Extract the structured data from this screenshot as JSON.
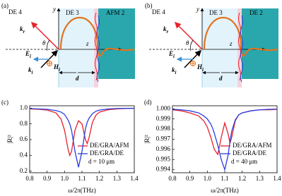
{
  "diagrams": [
    {
      "panel_label": "(a)",
      "outer_left": "DE 4",
      "middle": "DE 3",
      "right": "AFM 2",
      "y_axis": "y",
      "z_axis": "z",
      "theta": "θ",
      "kr": {
        "main": "k",
        "sub": "r"
      },
      "ki": {
        "main": "k",
        "sub": "i"
      },
      "Ei": {
        "main": "E",
        "sub": "i"
      },
      "Hi": {
        "main": "H",
        "sub": "i"
      },
      "d": "d"
    },
    {
      "panel_label": "(b)",
      "outer_left": "DE 4",
      "middle": "DE 3",
      "right": "DE 2",
      "y_axis": "y",
      "z_axis": "z",
      "theta": "θ",
      "kr": {
        "main": "k",
        "sub": "r"
      },
      "ki": {
        "main": "k",
        "sub": "i"
      },
      "Ei": {
        "main": "E",
        "sub": "i"
      },
      "Hi": {
        "main": "H",
        "sub": "i"
      },
      "d": "d"
    }
  ],
  "chart_data": [
    {
      "type": "line",
      "panel_label": "(c)",
      "xlabel": "ω/2π(THz)",
      "ylabel": "|R|²",
      "annotation": "d = 10 μm",
      "x": [
        0.8,
        0.85,
        0.9,
        0.95,
        0.98,
        1.0,
        1.02,
        1.03,
        1.04,
        1.06,
        1.08,
        1.1,
        1.12,
        1.13,
        1.14,
        1.16,
        1.18,
        1.2,
        1.25,
        1.3,
        1.35,
        1.4
      ],
      "series": [
        {
          "name": "DE/GRA/AFM",
          "color": "#e8202a",
          "values": [
            0.99,
            0.985,
            0.975,
            0.94,
            0.86,
            0.72,
            0.48,
            0.4,
            0.45,
            0.72,
            0.84,
            0.8,
            0.6,
            0.55,
            0.62,
            0.82,
            0.91,
            0.95,
            0.98,
            0.99,
            0.995,
            0.997
          ]
        },
        {
          "name": "DE/GRA/DE",
          "color": "#2b3fe0",
          "values": [
            0.995,
            0.99,
            0.985,
            0.97,
            0.95,
            0.92,
            0.85,
            0.8,
            0.72,
            0.45,
            0.25,
            0.45,
            0.74,
            0.82,
            0.87,
            0.93,
            0.96,
            0.975,
            0.99,
            0.995,
            0.997,
            0.998
          ]
        }
      ],
      "xlim": [
        0.8,
        1.4
      ],
      "xticks": [
        0.8,
        0.9,
        {
          "value": 1,
          "label": "1.0"
        },
        1.1,
        1.2,
        1.3,
        1.4
      ],
      "ylim": [
        0.18,
        1.03
      ],
      "yticks": [
        0.2,
        0.4,
        0.6,
        0.8,
        {
          "value": 1,
          "label": "1.0"
        }
      ]
    },
    {
      "type": "line",
      "panel_label": "(d)",
      "xlabel": "ω/2π(THz)",
      "ylabel": "|R|²",
      "annotation": "d = 40 μm",
      "x": [
        0.8,
        0.85,
        0.9,
        0.95,
        0.98,
        1.0,
        1.02,
        1.03,
        1.04,
        1.06,
        1.08,
        1.1,
        1.12,
        1.13,
        1.14,
        1.16,
        1.18,
        1.2,
        1.25,
        1.3,
        1.35,
        1.4
      ],
      "series": [
        {
          "name": "DE/GRA/AFM",
          "color": "#e8202a",
          "values": [
            0.9999,
            0.9998,
            0.9996,
            0.9993,
            0.9988,
            0.9982,
            0.9972,
            0.9966,
            0.996,
            0.9955,
            0.9972,
            0.9986,
            0.9975,
            0.9966,
            0.9972,
            0.9988,
            0.9994,
            0.9996,
            0.9998,
            0.9999,
            0.9999,
            0.99995
          ]
        },
        {
          "name": "DE/GRA/DE",
          "color": "#2b3fe0",
          "values": [
            0.99995,
            0.9999,
            0.9998,
            0.9996,
            0.9993,
            0.999,
            0.9985,
            0.9981,
            0.9976,
            0.9964,
            0.995,
            0.994,
            0.9955,
            0.9968,
            0.9978,
            0.9989,
            0.9994,
            0.9996,
            0.9998,
            0.9999,
            0.99995,
            0.99997
          ]
        }
      ],
      "xlim": [
        0.8,
        1.4
      ],
      "xticks": [
        0.8,
        0.9,
        {
          "value": 1,
          "label": "1.0"
        },
        1.1,
        1.2,
        1.3,
        1.4
      ],
      "ylim": [
        0.9937,
        1.0003
      ],
      "yticks": [
        0.994,
        0.995,
        0.996,
        0.997,
        0.998,
        0.999,
        {
          "value": 1,
          "label": "1.000"
        }
      ]
    }
  ]
}
